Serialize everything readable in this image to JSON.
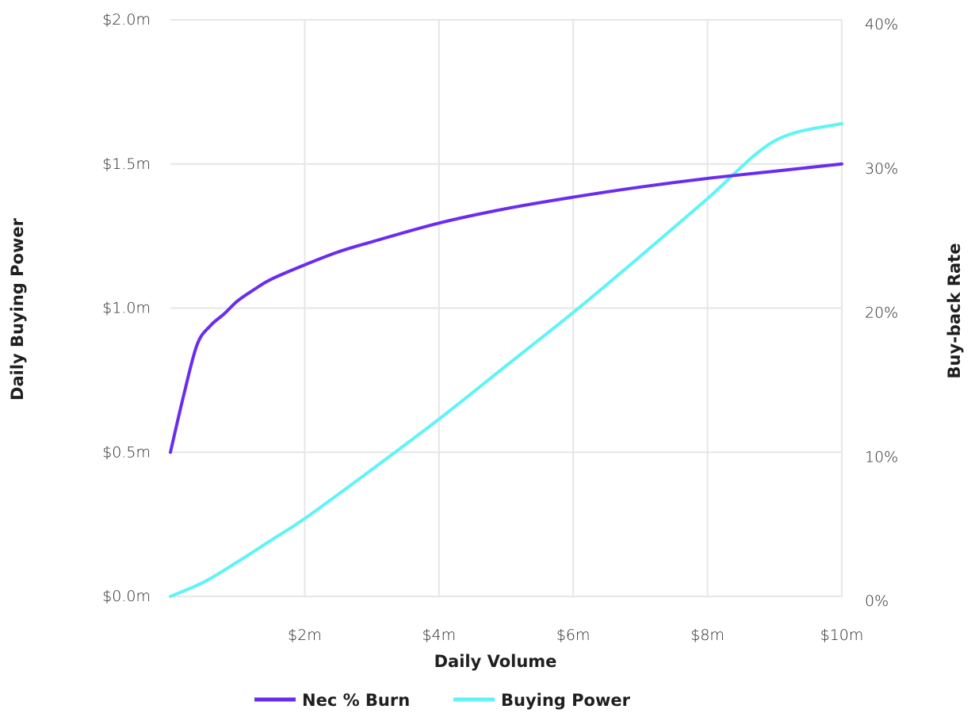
{
  "chart_data": {
    "type": "line",
    "title": "",
    "xlabel": "Daily Volume",
    "ylabel_left": "Daily Buying Power",
    "ylabel_right": "Buy-back Rate",
    "xlim": [
      0,
      10
    ],
    "ylim_left": [
      0,
      2.0
    ],
    "ylim_right": [
      0,
      40
    ],
    "x_ticks": [
      2,
      4,
      6,
      8,
      10
    ],
    "x_tick_labels": [
      "$2m",
      "$4m",
      "$6m",
      "$8m",
      "$10m"
    ],
    "y_left_ticks": [
      0,
      0.5,
      1.0,
      1.5,
      2.0
    ],
    "y_left_tick_labels": [
      "$0.0m",
      "$0.5m",
      "$1.0m",
      "$1.5m",
      "$2.0m"
    ],
    "y_right_ticks": [
      0,
      10,
      20,
      30,
      40
    ],
    "y_right_tick_labels": [
      "0%",
      "10%",
      "20%",
      "30%",
      "40%"
    ],
    "grid": true,
    "legend_position": "bottom-center",
    "series": [
      {
        "name": "Nec % Burn",
        "color": "#6a2cf0",
        "axis": "right",
        "x": [
          0.0,
          0.2,
          0.4,
          0.6,
          0.8,
          1.0,
          1.25,
          1.5,
          2.0,
          2.5,
          3.0,
          4.0,
          5.0,
          6.0,
          7.0,
          8.0,
          9.0,
          10.0
        ],
        "y": [
          10.0,
          14.0,
          17.5,
          18.8,
          19.6,
          20.5,
          21.3,
          22.0,
          23.0,
          23.9,
          24.6,
          25.9,
          26.9,
          27.7,
          28.4,
          29.0,
          29.5,
          30.0
        ]
      },
      {
        "name": "Buying Power",
        "color": "#5ff4f6",
        "axis": "left",
        "x": [
          0.0,
          0.5,
          1.0,
          1.5,
          2.0,
          3.0,
          4.0,
          5.0,
          6.0,
          7.0,
          8.0,
          9.0,
          10.0
        ],
        "y": [
          0.0,
          0.05,
          0.12,
          0.195,
          0.27,
          0.44,
          0.615,
          0.8,
          0.985,
          1.18,
          1.38,
          1.58,
          1.64
        ]
      }
    ]
  }
}
